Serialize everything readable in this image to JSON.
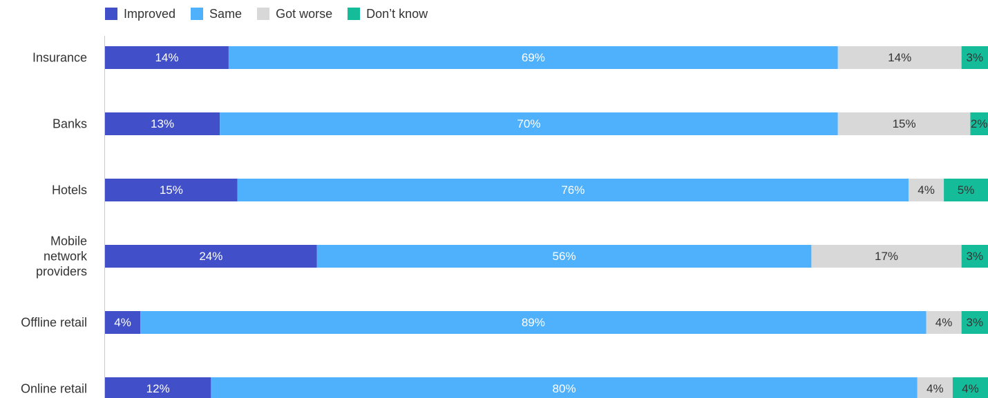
{
  "legend": {
    "items": [
      {
        "label": "Improved",
        "color": "#4150c8"
      },
      {
        "label": "Same",
        "color": "#4fb0fb"
      },
      {
        "label": "Got worse",
        "color": "#d8d8d8"
      },
      {
        "label": "Don’t know",
        "color": "#15bc9a"
      }
    ]
  },
  "chart_data": {
    "type": "bar",
    "orientation": "horizontal",
    "stacked": true,
    "categories": [
      [
        "Insurance"
      ],
      [
        "Banks"
      ],
      [
        "Hotels"
      ],
      [
        "Mobile",
        "network",
        "providers"
      ],
      [
        "Offline retail"
      ],
      [
        "Online retail"
      ]
    ],
    "series": [
      {
        "name": "Improved",
        "color": "#4150c8",
        "label_color": "#ffffff",
        "values": [
          14,
          13,
          15,
          24,
          4,
          12
        ]
      },
      {
        "name": "Same",
        "color": "#4fb0fb",
        "label_color": "#ffffff",
        "values": [
          69,
          70,
          76,
          56,
          89,
          80
        ]
      },
      {
        "name": "Got worse",
        "color": "#d8d8d8",
        "label_color": "#333333",
        "values": [
          14,
          15,
          4,
          17,
          4,
          4
        ]
      },
      {
        "name": "Don’t know",
        "color": "#15bc9a",
        "label_color": "#333333",
        "values": [
          3,
          2,
          5,
          3,
          3,
          4
        ]
      }
    ],
    "value_suffix": "%",
    "xlim": [
      0,
      100
    ],
    "grid": false,
    "legend_position": "top-left"
  }
}
